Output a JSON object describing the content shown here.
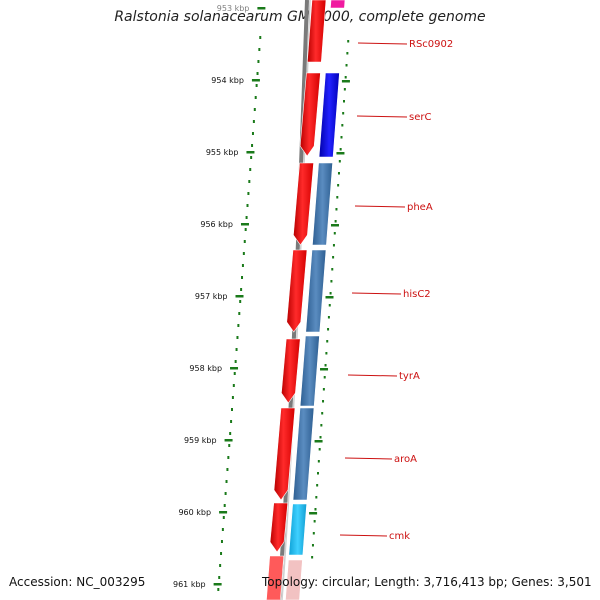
{
  "title": "Ralstonia solanacearum GMI1000, complete genome",
  "accession_text": "Accession: NC_003295",
  "topology_text": "Topology: circular; Length: 3,716,413 bp; Genes: 3,501",
  "ruler": {
    "ticks": [
      "953 kbp",
      "954 kbp",
      "955 kbp",
      "956 kbp",
      "957 kbp",
      "958 kbp",
      "959 kbp",
      "960 kbp",
      "961 kbp"
    ]
  },
  "genes": [
    {
      "label": "RSc0902"
    },
    {
      "label": "serC"
    },
    {
      "label": "pheA"
    },
    {
      "label": "hisC2"
    },
    {
      "label": "tyrA"
    },
    {
      "label": "aroA"
    },
    {
      "label": "cmk"
    }
  ],
  "colors": {
    "forward_cds": "#ee1111",
    "reverse_cds": "#3f73a8",
    "serC": "#1414d9",
    "cmk": "#1ab8ef",
    "backbone": "#7a7a7a",
    "ruler_tick": "#1a7a1a",
    "label": "#cc1111"
  }
}
